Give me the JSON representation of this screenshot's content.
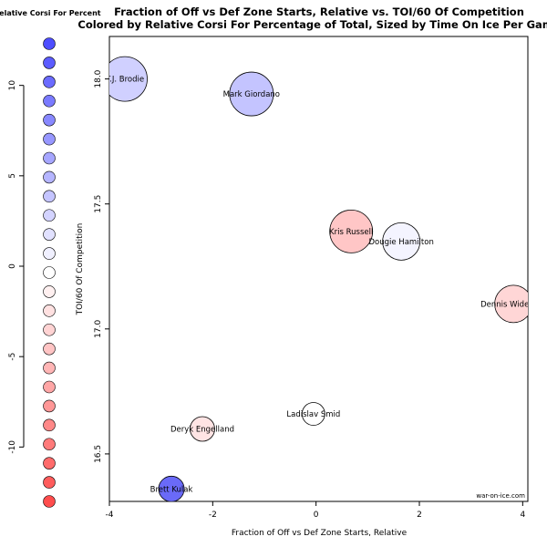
{
  "chart_data": {
    "type": "scatter",
    "title": "Fraction of Off vs Def Zone Starts, Relative vs. TOI/60 Of Competition",
    "subtitle": "Colored by Relative Corsi For Percentage of Total, Sized by Time On Ice Per Game",
    "xlabel": "Fraction of Off vs Def Zone Starts, Relative",
    "ylabel": "TOI/60 Of Competition",
    "xlim": [
      -4.0,
      4.1
    ],
    "ylim": [
      16.31,
      18.17
    ],
    "x_ticks": [
      -4,
      -2,
      0,
      2,
      4
    ],
    "y_ticks": [
      16.5,
      17.0,
      17.5,
      18.0
    ],
    "credit": "war-on-ice.com",
    "color_legend": {
      "title": "Relative Corsi For Percent",
      "ticks": [
        10,
        5,
        0,
        -5,
        -10
      ],
      "range": [
        12,
        -12
      ],
      "steps": 25,
      "positive_color": "#4d4dff",
      "negative_color": "#ff4d4d",
      "neutral_color": "#ffffff"
    },
    "points": [
      {
        "name": "T.J. Brodie",
        "x": -3.7,
        "y": 18.0,
        "size": 24.5,
        "color": "#d0d0ff"
      },
      {
        "name": "Mark Giordano",
        "x": -1.25,
        "y": 17.94,
        "size": 24.0,
        "color": "#c4c4ff"
      },
      {
        "name": "Kris Russell",
        "x": 0.68,
        "y": 17.39,
        "size": 23.5,
        "color": "#ffc6c6"
      },
      {
        "name": "Dougie Hamilton",
        "x": 1.65,
        "y": 17.35,
        "size": 20.5,
        "color": "#f4f4ff"
      },
      {
        "name": "Dennis Wideman",
        "x": 3.82,
        "y": 17.1,
        "size": 20.5,
        "color": "#ffd6d6"
      },
      {
        "name": "Ladislav Smid",
        "x": -0.05,
        "y": 16.66,
        "size": 12.5,
        "color": "#ffffff"
      },
      {
        "name": "Deryk Engelland",
        "x": -2.2,
        "y": 16.6,
        "size": 13.5,
        "color": "#ffe4e4"
      },
      {
        "name": "Brett Kulak",
        "x": -2.8,
        "y": 16.36,
        "size": 14.0,
        "color": "#6a6af8"
      }
    ]
  }
}
